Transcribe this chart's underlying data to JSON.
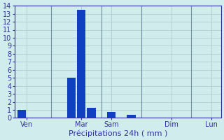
{
  "title": "Précipitations 24h ( mm )",
  "bar_color": "#1040c0",
  "background_color": "#d0ecec",
  "grid_color": "#a8c8c8",
  "axis_color": "#3030a0",
  "text_color": "#3030a0",
  "ylim": [
    0,
    14
  ],
  "yticks": [
    0,
    1,
    2,
    3,
    4,
    5,
    6,
    7,
    8,
    9,
    10,
    11,
    12,
    13,
    14
  ],
  "x_positions": [
    0,
    1,
    2,
    3,
    4,
    5,
    6,
    7,
    8,
    9,
    10,
    11,
    12,
    13,
    14,
    15,
    16,
    17,
    18,
    19
  ],
  "values": [
    1,
    0,
    0,
    0,
    0,
    5,
    13.5,
    1.3,
    0,
    0.7,
    0,
    0.4,
    0,
    0,
    0,
    0,
    0,
    0,
    0,
    0
  ],
  "day_ticks": [
    0.5,
    6,
    9,
    15,
    19
  ],
  "day_labels": [
    "Ven",
    "Mar",
    "Sam",
    "Dim",
    "Lun"
  ],
  "vline_positions": [
    3,
    8,
    12,
    17
  ],
  "bar_width": 0.85,
  "xlim": [
    -0.7,
    20
  ],
  "xlabel_fontsize": 8,
  "ytick_fontsize": 7,
  "xtick_fontsize": 7
}
